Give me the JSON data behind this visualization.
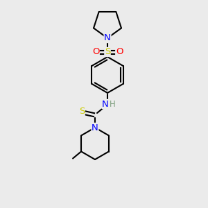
{
  "bg_color": "#ebebeb",
  "atom_colors": {
    "N": "#0000ff",
    "S_sulfonyl": "#cccc00",
    "O": "#ff0000",
    "S_thio": "#cccc00",
    "H": "#7f9f7f",
    "C": "#000000"
  },
  "bond_color": "#000000",
  "font_size_atoms": 8.5,
  "figsize": [
    3.0,
    3.0
  ],
  "dpi": 100
}
